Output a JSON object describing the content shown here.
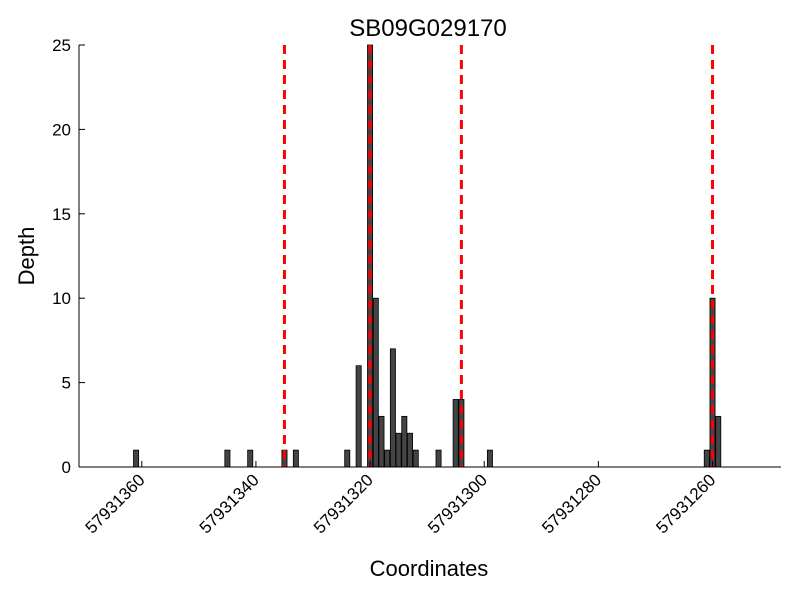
{
  "chart_data": {
    "type": "bar",
    "title": "SB09G029170",
    "xlabel": "Coordinates",
    "ylabel": "Depth",
    "x_reversed": true,
    "xlim": [
      57931371,
      57931248
    ],
    "ylim": [
      0,
      25
    ],
    "yticks": [
      0,
      5,
      10,
      15,
      20,
      25
    ],
    "xticks": [
      57931360,
      57931340,
      57931320,
      57931300,
      57931280,
      57931260
    ],
    "bar_color": "#444444",
    "marker_color": "#ff0000",
    "grid": false,
    "series": [
      {
        "x": [
          57931361,
          57931345,
          57931341,
          57931335,
          57931333,
          57931324,
          57931322,
          57931320,
          57931319,
          57931318,
          57931317,
          57931316,
          57931315,
          57931314,
          57931313,
          57931312,
          57931308,
          57931305,
          57931304,
          57931299,
          57931261,
          57931260,
          57931259
        ],
        "values": [
          1,
          1,
          1,
          1,
          1,
          1,
          6,
          25,
          10,
          3,
          1,
          7,
          2,
          3,
          2,
          1,
          1,
          4,
          4,
          1,
          1,
          10,
          3
        ]
      }
    ],
    "vlines": [
      57931335,
      57931320,
      57931304,
      57931260
    ]
  }
}
